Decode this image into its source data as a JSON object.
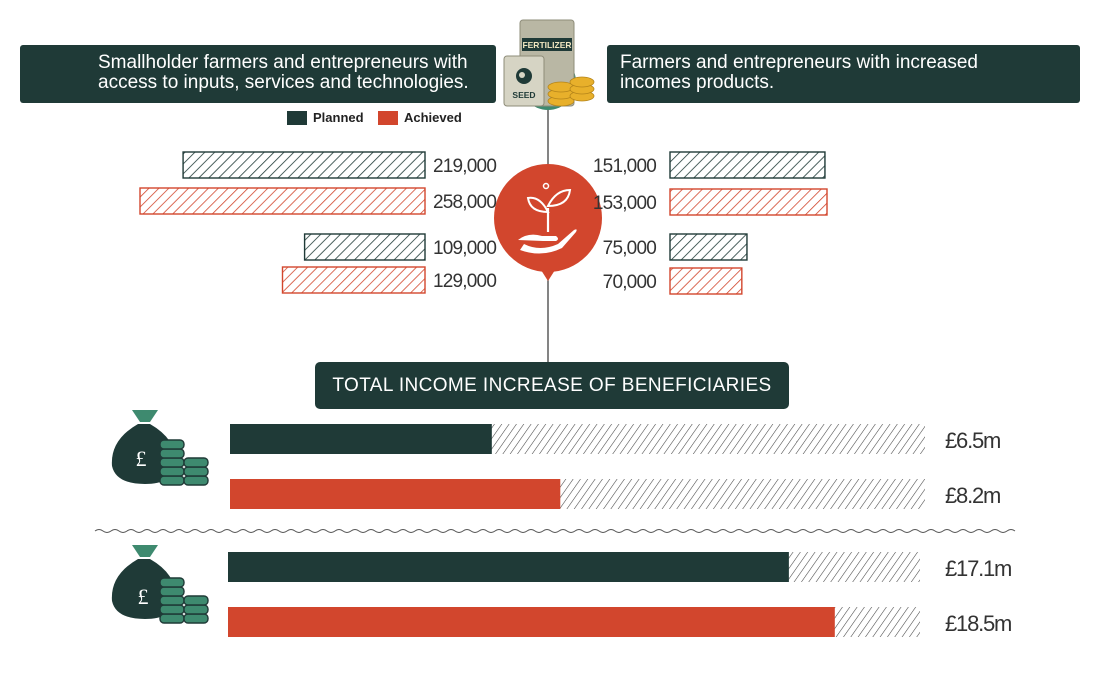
{
  "colors": {
    "planned": "#1f3a37",
    "achieved": "#d2462d",
    "teal": "#3e8a6f",
    "gold": "#e8b02b"
  },
  "banners": {
    "left_line1": "Smallholder farmers and entrepreneurs with",
    "left_line2": "access to inputs, services and technologies.",
    "right_line1": "Farmers and entrepreneurs with increased",
    "right_line2": "incomes products."
  },
  "bags": {
    "fertilizer_label": "FERTILIZER",
    "seed_label": "SEED",
    "currency_symbol": "£"
  },
  "legend": {
    "planned": "Planned",
    "achieved": "Achieved"
  },
  "total_title": "TOTAL INCOME INCREASE OF BENEFICIARIES",
  "chart_data": [
    {
      "type": "bar",
      "orientation": "horizontal",
      "side": "left",
      "title": "Smallholder farmers and entrepreneurs with access to inputs, services and technologies.",
      "groups": [
        {
          "planned": 219000,
          "planned_label": "219,000",
          "achieved": 258000,
          "achieved_label": "258,000"
        },
        {
          "planned": 109000,
          "planned_label": "109,000",
          "achieved": 129000,
          "achieved_label": "129,000"
        }
      ]
    },
    {
      "type": "bar",
      "orientation": "horizontal",
      "side": "right",
      "title": "Farmers and entrepreneurs with increased incomes products.",
      "groups": [
        {
          "planned": 151000,
          "planned_label": "151,000",
          "achieved": 153000,
          "achieved_label": "153,000"
        },
        {
          "planned": 75000,
          "planned_label": "75,000",
          "achieved": 70000,
          "achieved_label": "70,000"
        }
      ]
    },
    {
      "type": "bar",
      "orientation": "horizontal",
      "title": "TOTAL INCOME INCREASE OF BENEFICIARIES",
      "unit": "£m",
      "groups": [
        {
          "planned": 6.5,
          "planned_label": "£6.5m",
          "achieved": 8.2,
          "achieved_label": "£8.2m"
        },
        {
          "planned": 17.1,
          "planned_label": "£17.1m",
          "achieved": 18.5,
          "achieved_label": "£18.5m"
        }
      ]
    }
  ]
}
